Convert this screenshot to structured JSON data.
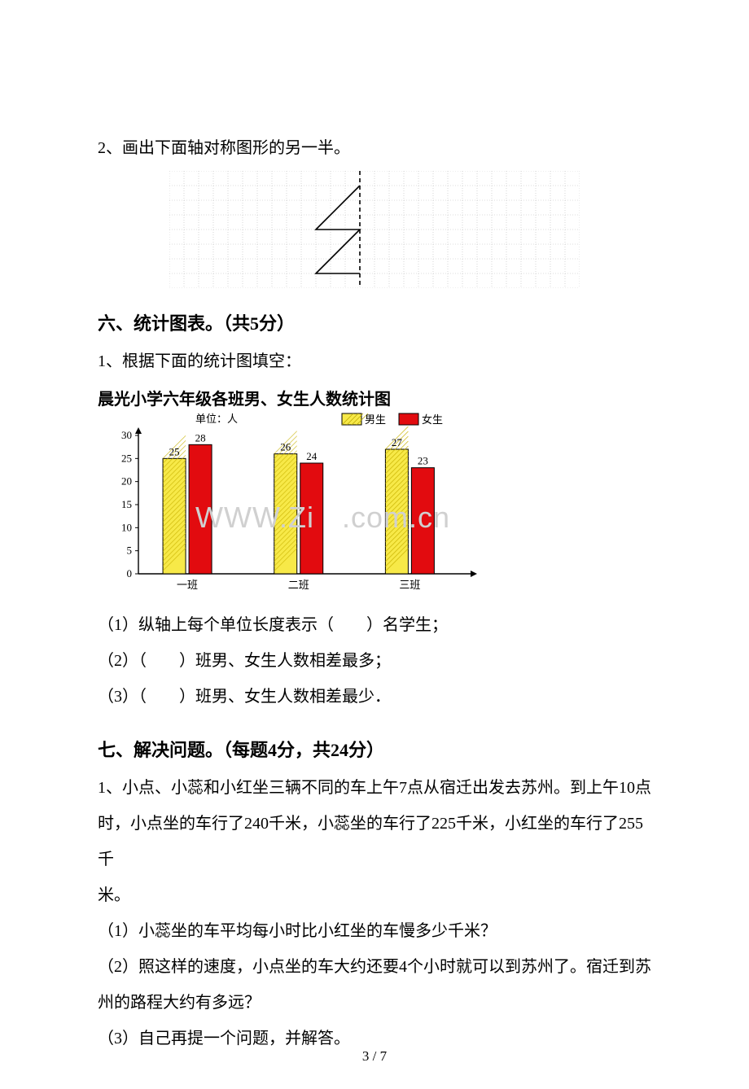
{
  "q2": {
    "text": "2、画出下面轴对称图形的另一半。"
  },
  "grid": {
    "cols": 28,
    "rows": 8,
    "cell": 18,
    "stroke": "#bcbcbc",
    "axis_col": 13,
    "axis_stroke": "#000000",
    "axis_dash": "5,4",
    "shape_stroke": "#000000",
    "shape_width": 1.6,
    "shape_points": [
      [
        13,
        1
      ],
      [
        10,
        4
      ],
      [
        13,
        4
      ],
      [
        10,
        7
      ],
      [
        13,
        7
      ]
    ]
  },
  "s6": {
    "title": "六、统计图表。（共5分）"
  },
  "s6_q1": {
    "text": "1、根据下面的统计图填空："
  },
  "chart": {
    "title": "晨光小学六年级各班男、女生人数统计图",
    "unit_label": "单位：人",
    "legend": {
      "male": "男生",
      "female": "女生"
    },
    "legend_male_color": "#f7e948",
    "legend_female_color": "#e20b0f",
    "axis_color": "#000000",
    "tick_color": "#000000",
    "ylim": [
      0,
      30
    ],
    "ytick_step": 5,
    "yticks": [
      0,
      5,
      10,
      15,
      20,
      25,
      30
    ],
    "categories": [
      "一班",
      "二班",
      "三班"
    ],
    "male_values": [
      25,
      26,
      27
    ],
    "female_values": [
      28,
      24,
      23
    ],
    "bar_colors": {
      "male": "#f7e948",
      "female": "#e20b0f"
    },
    "bar_border": "#000000",
    "label_fontsize": 13,
    "value_fontsize": 13,
    "bg": "#ffffff",
    "watermark1": "WWW.Zi",
    "watermark2": ".com.cn"
  },
  "s6_items": {
    "i1": "（1）纵轴上每个单位长度表示（　　）名学生；",
    "i2": "（2）（　　）班男、女生人数相差最多；",
    "i3": "（3）（　　）班男、女生人数相差最少．"
  },
  "s7": {
    "title": "七、解决问题。（每题4分，共24分）"
  },
  "s7_q1": {
    "p1": "1、小点、小蕊和小红坐三辆不同的车上午7点从宿迁出发去苏州。到上午10点",
    "p2": "时，小点坐的车行了240千米，小蕊坐的车行了225千米，小红坐的车行了255千",
    "p3": "米。",
    "i1": "（1）小蕊坐的车平均每小时比小红坐的车慢多少千米？",
    "i2a": "（2）照这样的速度，小点坐的车大约还要4个小时就可以到苏州了。宿迁到苏",
    "i2b": "州的路程大约有多远？",
    "i3": "（3）自己再提一个问题，并解答。"
  },
  "pagenum": "3 / 7"
}
